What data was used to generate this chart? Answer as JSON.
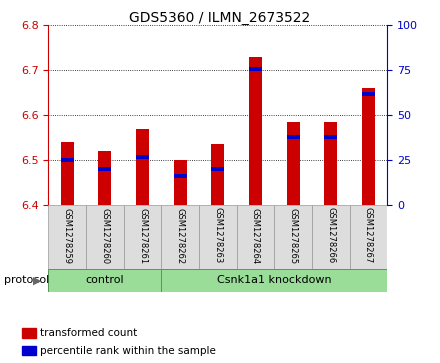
{
  "title": "GDS5360 / ILMN_2673522",
  "samples": [
    "GSM1278259",
    "GSM1278260",
    "GSM1278261",
    "GSM1278262",
    "GSM1278263",
    "GSM1278264",
    "GSM1278265",
    "GSM1278266",
    "GSM1278267"
  ],
  "transformed_count": [
    6.54,
    6.52,
    6.57,
    6.5,
    6.535,
    6.73,
    6.585,
    6.585,
    6.66
  ],
  "percentile_rank": [
    25,
    20,
    27,
    16,
    20,
    76,
    38,
    38,
    62
  ],
  "ylim_left": [
    6.4,
    6.8
  ],
  "ylim_right": [
    0,
    100
  ],
  "yticks_left": [
    6.4,
    6.5,
    6.6,
    6.7,
    6.8
  ],
  "yticks_right": [
    0,
    25,
    50,
    75,
    100
  ],
  "bar_color": "#cc0000",
  "percentile_color": "#0000cc",
  "protocol_groups": [
    {
      "label": "control",
      "start": 0,
      "end": 3
    },
    {
      "label": "Csnk1a1 knockdown",
      "start": 3,
      "end": 9
    }
  ],
  "protocol_label": "protocol",
  "legend_items": [
    {
      "label": "transformed count",
      "color": "#cc0000"
    },
    {
      "label": "percentile rank within the sample",
      "color": "#0000cc"
    }
  ],
  "bar_width": 0.35,
  "title_fontsize": 10,
  "tick_label_fontsize": 8,
  "sample_label_fontsize": 6,
  "group_label_fontsize": 8,
  "protocol_fontsize": 8,
  "legend_fontsize": 7.5
}
